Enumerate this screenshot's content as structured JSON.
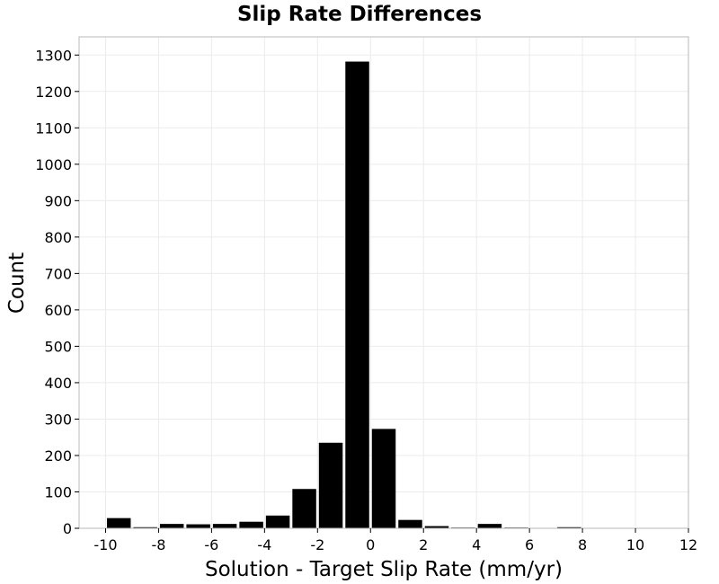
{
  "chart_data": {
    "type": "bar",
    "title": "Slip Rate Differences",
    "xlabel": "Solution - Target Slip Rate (mm/yr)",
    "ylabel": "Count",
    "xlim": [
      -11,
      12
    ],
    "ylim": [
      0,
      1350
    ],
    "grid": true,
    "bin_width": 1,
    "x_ticks": [
      -10,
      -8,
      -6,
      -4,
      -2,
      0,
      2,
      4,
      6,
      8,
      10,
      12
    ],
    "y_ticks": [
      0,
      100,
      200,
      300,
      400,
      500,
      600,
      700,
      800,
      900,
      1000,
      1100,
      1200,
      1300
    ],
    "x_tick_labels": [
      "-10",
      "-8",
      "-6",
      "-4",
      "-2",
      "0",
      "2",
      "4",
      "6",
      "8",
      "10",
      "12"
    ],
    "y_tick_labels": [
      "0",
      "100",
      "200",
      "300",
      "400",
      "500",
      "600",
      "700",
      "800",
      "900",
      "1000",
      "1100",
      "1200",
      "1300"
    ],
    "bin_centers": [
      -9.5,
      -8.5,
      -7.5,
      -6.5,
      -5.5,
      -4.5,
      -3.5,
      -2.5,
      -1.5,
      -0.5,
      0.5,
      1.5,
      2.5,
      3.5,
      4.5,
      5.5,
      7.5
    ],
    "values": [
      28,
      3,
      12,
      11,
      12,
      18,
      35,
      108,
      235,
      1282,
      273,
      23,
      6,
      2,
      12,
      2,
      3
    ],
    "bar_color": "#000000"
  }
}
